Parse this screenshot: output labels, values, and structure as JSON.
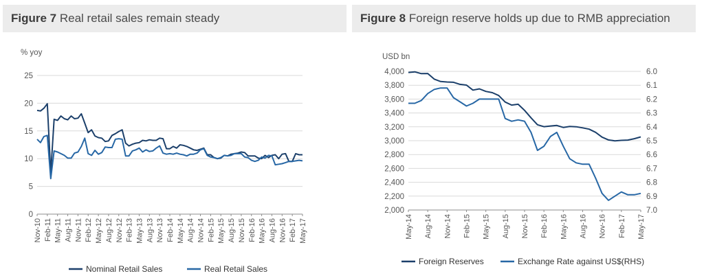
{
  "colors": {
    "dark_series": "#1b3f6a",
    "light_series": "#2767a5",
    "grid": "#d9d9d9",
    "title_bg": "#ececec"
  },
  "fig7": {
    "num": "Figure 7",
    "text": "Real retail sales remain steady",
    "unit": "% yoy",
    "chart_data": {
      "type": "line",
      "title": "Real retail sales remain steady",
      "ylabel": "% yoy",
      "ylim": [
        0,
        25
      ],
      "yticks": [
        "0",
        "5",
        "10",
        "15",
        "20",
        "25"
      ],
      "xlim": [
        "2010-11",
        "2017-05"
      ],
      "xticks": [
        "Nov-10",
        "Feb-11",
        "May-11",
        "Aug-11",
        "Nov-11",
        "Feb-12",
        "May-12",
        "Aug-12",
        "Nov-12",
        "Feb-13",
        "May-13",
        "Aug-13",
        "Nov-13",
        "Feb-14",
        "May-14",
        "Aug-14",
        "Nov-14",
        "Feb-15",
        "May-15",
        "Aug-15",
        "Nov-15",
        "Feb-16",
        "May-16",
        "Aug-16",
        "Nov-16",
        "Feb-17",
        "May-17"
      ],
      "grid": "horizontal",
      "legend": "bottom",
      "series": [
        {
          "name": "Nominal Retail Sales",
          "color": "#1b3f6a",
          "x": [
            "2010-11",
            "2010-12",
            "2011-01",
            "2011-02",
            "2011-03",
            "2011-04",
            "2011-05",
            "2011-06",
            "2011-07",
            "2011-08",
            "2011-09",
            "2011-10",
            "2011-11",
            "2011-12",
            "2012-01",
            "2012-02",
            "2012-03",
            "2012-04",
            "2012-05",
            "2012-06",
            "2012-07",
            "2012-08",
            "2012-09",
            "2012-10",
            "2012-11",
            "2012-12",
            "2013-01",
            "2013-02",
            "2013-03",
            "2013-04",
            "2013-05",
            "2013-06",
            "2013-07",
            "2013-08",
            "2013-09",
            "2013-10",
            "2013-11",
            "2013-12",
            "2014-01",
            "2014-02",
            "2014-03",
            "2014-04",
            "2014-05",
            "2014-06",
            "2014-07",
            "2014-08",
            "2014-09",
            "2014-10",
            "2014-11",
            "2014-12",
            "2015-01",
            "2015-02",
            "2015-03",
            "2015-04",
            "2015-05",
            "2015-06",
            "2015-07",
            "2015-08",
            "2015-09",
            "2015-10",
            "2015-11",
            "2015-12",
            "2016-01",
            "2016-02",
            "2016-03",
            "2016-04",
            "2016-05",
            "2016-06",
            "2016-07",
            "2016-08",
            "2016-09",
            "2016-10",
            "2016-11",
            "2016-12",
            "2017-01",
            "2017-02",
            "2017-03",
            "2017-04",
            "2017-05"
          ],
          "y": [
            18.7,
            18.6,
            19.1,
            19.9,
            7.4,
            17.1,
            16.9,
            17.7,
            17.2,
            17.0,
            17.7,
            17.2,
            17.3,
            18.1,
            16.4,
            14.7,
            15.2,
            14.1,
            13.8,
            13.7,
            13.1,
            13.2,
            14.2,
            14.5,
            14.9,
            15.2,
            12.8,
            12.3,
            12.6,
            12.8,
            12.9,
            13.3,
            13.2,
            13.4,
            13.3,
            13.3,
            13.7,
            13.6,
            11.8,
            11.8,
            12.2,
            11.9,
            12.5,
            12.4,
            12.2,
            11.9,
            11.6,
            11.5,
            11.7,
            11.9,
            10.7,
            10.7,
            10.2,
            10.0,
            10.1,
            10.6,
            10.5,
            10.8,
            10.9,
            11.0,
            11.2,
            11.1,
            10.5,
            10.5,
            10.5,
            10.1,
            10.0,
            10.6,
            10.2,
            10.6,
            10.7,
            10.0,
            10.8,
            10.9,
            9.5,
            9.5,
            10.9,
            10.7,
            10.7
          ]
        },
        {
          "name": "Real Retail Sales",
          "color": "#2767a5",
          "x": [
            "2010-11",
            "2010-12",
            "2011-01",
            "2011-02",
            "2011-03",
            "2011-04",
            "2011-05",
            "2011-06",
            "2011-07",
            "2011-08",
            "2011-09",
            "2011-10",
            "2011-11",
            "2011-12",
            "2012-01",
            "2012-02",
            "2012-03",
            "2012-04",
            "2012-05",
            "2012-06",
            "2012-07",
            "2012-08",
            "2012-09",
            "2012-10",
            "2012-11",
            "2012-12",
            "2013-01",
            "2013-02",
            "2013-03",
            "2013-04",
            "2013-05",
            "2013-06",
            "2013-07",
            "2013-08",
            "2013-09",
            "2013-10",
            "2013-11",
            "2013-12",
            "2014-01",
            "2014-02",
            "2014-03",
            "2014-04",
            "2014-05",
            "2014-06",
            "2014-07",
            "2014-08",
            "2014-09",
            "2014-10",
            "2014-11",
            "2014-12",
            "2015-01",
            "2015-02",
            "2015-03",
            "2015-04",
            "2015-05",
            "2015-06",
            "2015-07",
            "2015-08",
            "2015-09",
            "2015-10",
            "2015-11",
            "2015-12",
            "2016-01",
            "2016-02",
            "2016-03",
            "2016-04",
            "2016-05",
            "2016-06",
            "2016-07",
            "2016-08",
            "2016-09",
            "2016-10",
            "2016-11",
            "2016-12",
            "2017-01",
            "2017-02",
            "2017-03",
            "2017-04",
            "2017-05"
          ],
          "y": [
            13.5,
            12.9,
            14.0,
            14.2,
            6.4,
            11.4,
            11.2,
            10.9,
            10.6,
            10.1,
            10.1,
            11.0,
            11.2,
            12.2,
            13.7,
            10.9,
            10.6,
            11.5,
            10.8,
            11.1,
            12.1,
            12.0,
            12.0,
            13.5,
            13.6,
            13.5,
            10.5,
            10.5,
            11.4,
            11.6,
            11.9,
            11.2,
            11.6,
            11.3,
            11.4,
            11.9,
            12.3,
            11.0,
            10.8,
            10.9,
            10.8,
            11.0,
            10.8,
            10.7,
            10.5,
            10.8,
            10.8,
            11.0,
            11.6,
            11.8,
            10.6,
            10.3,
            10.2,
            10.0,
            10.2,
            10.6,
            10.5,
            10.6,
            10.9,
            10.9,
            10.9,
            10.3,
            10.2,
            9.7,
            9.5,
            9.7,
            10.3,
            10.1,
            10.6,
            10.5,
            8.9,
            9.0,
            9.1,
            9.3,
            9.5,
            9.5,
            9.6,
            9.7,
            9.6
          ]
        }
      ]
    },
    "legend": [
      "Nominal Retail Sales",
      "Real Retail Sales"
    ]
  },
  "fig8": {
    "num": "Figure 8",
    "text": "Foreign reserve holds up due to RMB appreciation",
    "unit": "USD bn",
    "chart_data": {
      "type": "line",
      "title": "Foreign reserve holds up due to RMB appreciation",
      "ylabel": "USD bn",
      "ylim": [
        2000,
        4000
      ],
      "y2lim": [
        6.0,
        7.0
      ],
      "y2_inverted": true,
      "yticks": [
        "2,000",
        "2,200",
        "2,400",
        "2,600",
        "2,800",
        "3,000",
        "3,200",
        "3,400",
        "3,600",
        "3,800",
        "4,000"
      ],
      "y2ticks": [
        "6.0",
        "6.1",
        "6.2",
        "6.3",
        "6.4",
        "6.5",
        "6.6",
        "6.7",
        "6.8",
        "6.9",
        "7.0"
      ],
      "xlim": [
        "2014-05",
        "2017-05"
      ],
      "xticks": [
        "May-14",
        "Aug-14",
        "Nov-14",
        "Feb-15",
        "May-15",
        "Aug-15",
        "Nov-15",
        "Feb-16",
        "May-16",
        "Aug-16",
        "Nov-16",
        "Feb-17",
        "May-17"
      ],
      "grid": "horizontal",
      "legend": "bottom",
      "series": [
        {
          "name": "Foreign Reserves",
          "color": "#1b3f6a",
          "axis": "left",
          "x": [
            "2014-05",
            "2014-06",
            "2014-07",
            "2014-08",
            "2014-09",
            "2014-10",
            "2014-11",
            "2014-12",
            "2015-01",
            "2015-02",
            "2015-03",
            "2015-04",
            "2015-05",
            "2015-06",
            "2015-07",
            "2015-08",
            "2015-09",
            "2015-10",
            "2015-11",
            "2015-12",
            "2016-01",
            "2016-02",
            "2016-03",
            "2016-04",
            "2016-05",
            "2016-06",
            "2016-07",
            "2016-08",
            "2016-09",
            "2016-10",
            "2016-11",
            "2016-12",
            "2017-01",
            "2017-02",
            "2017-03",
            "2017-04",
            "2017-05"
          ],
          "y": [
            3984,
            3993,
            3967,
            3969,
            3888,
            3853,
            3847,
            3843,
            3813,
            3802,
            3730,
            3748,
            3711,
            3693,
            3651,
            3557,
            3514,
            3526,
            3438,
            3330,
            3230,
            3202,
            3212,
            3220,
            3191,
            3205,
            3201,
            3185,
            3166,
            3121,
            3051,
            3011,
            2998,
            3005,
            3009,
            3029,
            3054
          ]
        },
        {
          "name": "Exchange Rate against US$(RHS)",
          "color": "#2767a5",
          "axis": "right",
          "x": [
            "2014-05",
            "2014-06",
            "2014-07",
            "2014-08",
            "2014-09",
            "2014-10",
            "2014-11",
            "2014-12",
            "2015-01",
            "2015-02",
            "2015-03",
            "2015-04",
            "2015-05",
            "2015-06",
            "2015-07",
            "2015-08",
            "2015-09",
            "2015-10",
            "2015-11",
            "2015-12",
            "2016-01",
            "2016-02",
            "2016-03",
            "2016-04",
            "2016-05",
            "2016-06",
            "2016-07",
            "2016-08",
            "2016-09",
            "2016-10",
            "2016-11",
            "2016-12",
            "2017-01",
            "2017-02",
            "2017-03",
            "2017-04",
            "2017-05"
          ],
          "y": [
            6.23,
            6.23,
            6.21,
            6.16,
            6.13,
            6.12,
            6.12,
            6.19,
            6.22,
            6.25,
            6.23,
            6.2,
            6.2,
            6.2,
            6.2,
            6.34,
            6.36,
            6.35,
            6.36,
            6.44,
            6.57,
            6.54,
            6.47,
            6.44,
            6.54,
            6.63,
            6.66,
            6.67,
            6.67,
            6.77,
            6.88,
            6.93,
            6.9,
            6.87,
            6.89,
            6.89,
            6.88
          ]
        }
      ]
    },
    "legend": [
      "Foreign Reserves",
      "Exchange Rate against US$(RHS)"
    ]
  }
}
